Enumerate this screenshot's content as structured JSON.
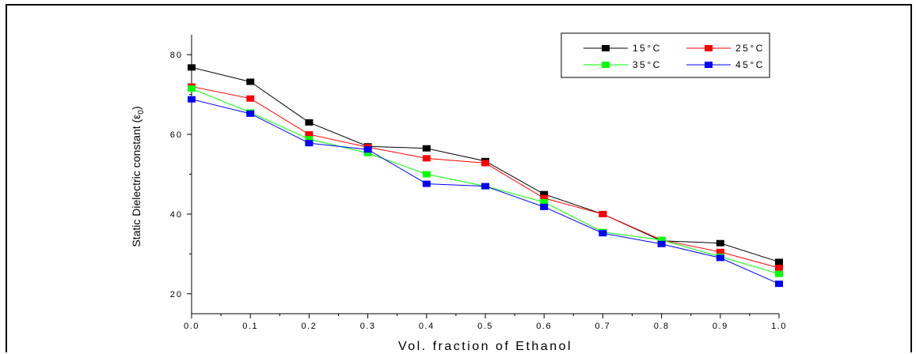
{
  "chart_data": {
    "type": "line",
    "xlabel": "Vol. fraction of Ethanol",
    "ylabel": "Static Dielectric constant (ε",
    "ylabel_subscript": "0",
    "ylabel_close": ")",
    "xlim": [
      0.0,
      1.0
    ],
    "ylim": [
      15,
      85
    ],
    "x_ticks": [
      "0.0",
      "0.1",
      "0.2",
      "0.3",
      "0.4",
      "0.5",
      "0.6",
      "0.7",
      "0.8",
      "0.9",
      "1.0"
    ],
    "y_ticks": [
      "20",
      "40",
      "60",
      "80"
    ],
    "x": [
      0.0,
      0.1,
      0.2,
      0.3,
      0.4,
      0.5,
      0.6,
      0.7,
      0.8,
      0.9,
      1.0
    ],
    "grid": false,
    "legend_position": "top-right",
    "series": [
      {
        "name": "15°C",
        "color": "#000000",
        "values": [
          76.8,
          73.2,
          63.0,
          57.0,
          56.5,
          53.3,
          45.0,
          40.0,
          33.3,
          32.7,
          28.0
        ]
      },
      {
        "name": "25°C",
        "color": "#ff0000",
        "values": [
          72.0,
          69.0,
          60.0,
          56.8,
          54.0,
          52.8,
          44.0,
          40.0,
          33.5,
          30.5,
          26.5
        ]
      },
      {
        "name": "35°C",
        "color": "#00ff00",
        "values": [
          71.5,
          65.5,
          58.8,
          55.3,
          50.0,
          47.0,
          43.0,
          35.5,
          33.5,
          29.3,
          25.0
        ]
      },
      {
        "name": "45°C",
        "color": "#0000ff",
        "values": [
          68.8,
          65.2,
          57.8,
          56.2,
          47.6,
          47.0,
          41.8,
          35.2,
          32.5,
          29.0,
          22.5
        ]
      }
    ]
  }
}
